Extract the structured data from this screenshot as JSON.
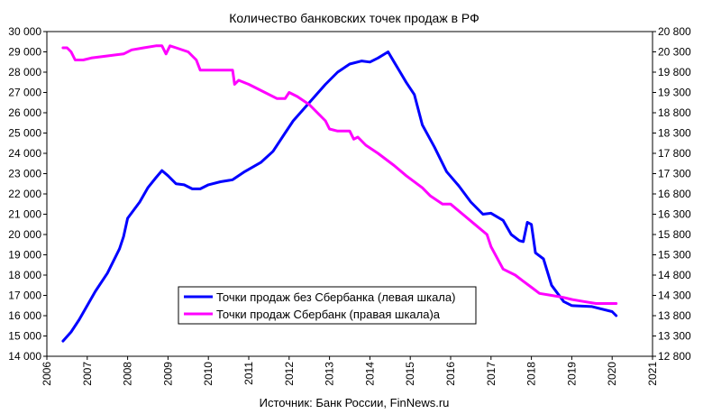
{
  "chart_data": {
    "type": "line",
    "title": "Количество  банковских  точек  продаж  в РФ",
    "source": "Источник: Банк России, FinNews.ru",
    "x_axis": {
      "min": 2006,
      "max": 2021,
      "ticks": [
        2006,
        2007,
        2008,
        2009,
        2010,
        2011,
        2012,
        2013,
        2014,
        2015,
        2016,
        2017,
        2018,
        2019,
        2020,
        2021
      ]
    },
    "y_left": {
      "min": 14000,
      "max": 30000,
      "step": 1000,
      "tick_labels": [
        "14 000",
        "15 000",
        "16 000",
        "17 000",
        "18 000",
        "19 000",
        "20 000",
        "21 000",
        "22 000",
        "23 000",
        "24 000",
        "25 000",
        "26 000",
        "27 000",
        "28 000",
        "29 000",
        "30 000"
      ]
    },
    "y_right": {
      "min": 12800,
      "max": 20800,
      "step": 500,
      "tick_labels": [
        "12 800",
        "13 300",
        "13 800",
        "14 300",
        "14 800",
        "15 300",
        "15 800",
        "16 300",
        "16 800",
        "17 300",
        "17 800",
        "18 300",
        "18 800",
        "19 300",
        "19 800",
        "20 300",
        "20 800"
      ]
    },
    "grid": false,
    "legend_position": "bottom-center",
    "series": [
      {
        "name": "Точки продаж без Сбербанка (левая шкала)",
        "axis": "left",
        "color": "#0000FF",
        "x": [
          2006.4,
          2006.6,
          2006.8,
          2007.0,
          2007.2,
          2007.5,
          2007.8,
          2007.9,
          2008.0,
          2008.3,
          2008.5,
          2008.7,
          2008.85,
          2009.0,
          2009.2,
          2009.4,
          2009.6,
          2009.8,
          2010.0,
          2010.3,
          2010.6,
          2010.9,
          2011.3,
          2011.6,
          2011.9,
          2012.1,
          2012.5,
          2012.9,
          2013.2,
          2013.5,
          2013.8,
          2014.0,
          2014.2,
          2014.45,
          2014.6,
          2014.75,
          2014.9,
          2015.1,
          2015.3,
          2015.6,
          2015.9,
          2016.2,
          2016.5,
          2016.8,
          2017.0,
          2017.3,
          2017.5,
          2017.7,
          2017.8,
          2017.9,
          2018.0,
          2018.1,
          2018.3,
          2018.5,
          2018.8,
          2019.0,
          2019.5,
          2020.0,
          2020.1
        ],
        "y": [
          14750,
          15200,
          15800,
          16500,
          17200,
          18100,
          19300,
          19900,
          20800,
          21600,
          22300,
          22800,
          23150,
          22900,
          22500,
          22450,
          22250,
          22250,
          22450,
          22600,
          22700,
          23100,
          23550,
          24100,
          25000,
          25600,
          26500,
          27400,
          28000,
          28400,
          28550,
          28500,
          28700,
          29000,
          28500,
          28000,
          27500,
          26900,
          25400,
          24300,
          23100,
          22400,
          21600,
          21000,
          21050,
          20700,
          20000,
          19700,
          19650,
          20600,
          20500,
          19100,
          18800,
          17500,
          16700,
          16500,
          16450,
          16200,
          16000
        ]
      },
      {
        "name": "Точки продаж Сбербанк (правая шкала)а",
        "axis": "right",
        "color": "#FF00FF",
        "x": [
          2006.4,
          2006.5,
          2006.6,
          2006.7,
          2006.9,
          2007.1,
          2007.5,
          2007.9,
          2008.1,
          2008.4,
          2008.7,
          2008.85,
          2008.95,
          2009.05,
          2009.2,
          2009.5,
          2009.7,
          2009.8,
          2010.0,
          2010.4,
          2010.6,
          2010.65,
          2010.75,
          2011.0,
          2011.4,
          2011.7,
          2011.9,
          2012.0,
          2012.2,
          2012.5,
          2012.8,
          2012.9,
          2013.0,
          2013.2,
          2013.5,
          2013.6,
          2013.7,
          2013.9,
          2014.2,
          2014.6,
          2014.9,
          2015.3,
          2015.5,
          2015.8,
          2016.0,
          2016.3,
          2016.6,
          2016.9,
          2017.0,
          2017.3,
          2017.6,
          2017.8,
          2018.0,
          2018.2,
          2018.5,
          2018.8,
          2019.0,
          2019.3,
          2019.6,
          2019.8,
          2020.1
        ],
        "y": [
          20400,
          20400,
          20300,
          20100,
          20100,
          20150,
          20200,
          20250,
          20350,
          20400,
          20450,
          20450,
          20250,
          20450,
          20400,
          20300,
          20100,
          19850,
          19850,
          19850,
          19850,
          19500,
          19600,
          19500,
          19300,
          19150,
          19150,
          19300,
          19200,
          19000,
          18700,
          18600,
          18400,
          18350,
          18350,
          18150,
          18200,
          18000,
          17800,
          17500,
          17250,
          16950,
          16750,
          16550,
          16550,
          16300,
          16050,
          15800,
          15500,
          14950,
          14800,
          14650,
          14500,
          14350,
          14300,
          14250,
          14200,
          14150,
          14100,
          14100,
          14100
        ]
      }
    ]
  },
  "legend": [
    {
      "label": "Точки продаж без Сбербанка (левая шкала)",
      "color": "#0000FF"
    },
    {
      "label": "Точки продаж Сбербанк (правая шкала)а",
      "color": "#FF00FF"
    }
  ]
}
